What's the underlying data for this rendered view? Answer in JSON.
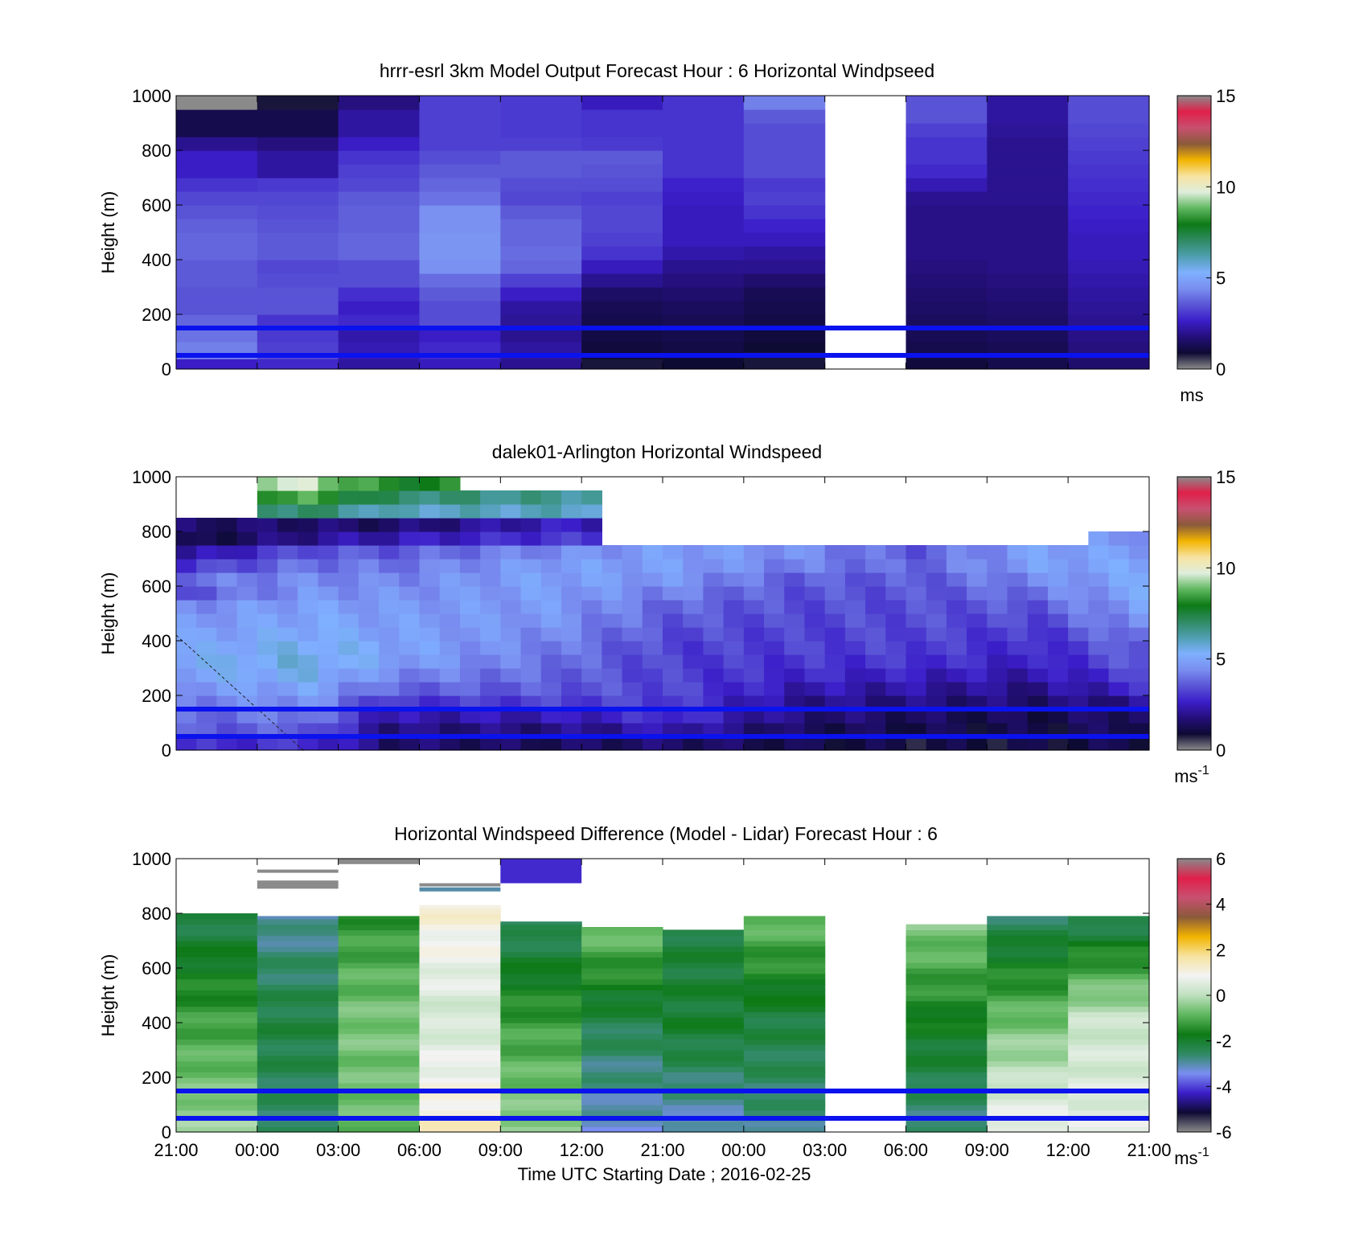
{
  "colors": {
    "reference_lines": "#0a12ee",
    "missing": "#ffffff",
    "speed_colormap": [
      "#8a8a8a",
      "#0d0a33",
      "#240f7a",
      "#3b1ec9",
      "#5a55d6",
      "#7a8ef0",
      "#7fb0ff",
      "#4f9fb0",
      "#2f8a62",
      "#0d7a16",
      "#5fb75f",
      "#dfeedd",
      "#f7e3a0",
      "#f2b400",
      "#8a5a3a",
      "#c85070",
      "#e0204a",
      "#8a8a8a"
    ],
    "diff_colormap": [
      "#8a8a8a",
      "#0d0a33",
      "#3b1ec9",
      "#7a8ef0",
      "#2f8a62",
      "#0d7a16",
      "#5fb75f",
      "#bfe0bf",
      "#f3f3f3",
      "#f7e3a0",
      "#f2b400",
      "#8a5a3a",
      "#c85070",
      "#e0204a",
      "#8a8a8a"
    ]
  },
  "chart_data": [
    {
      "type": "heatmap",
      "title": "hrrr-esrl 3km Model Output   Forecast Hour : 6 Horizontal Windpseed",
      "ylabel": "Height (m)",
      "ylim": [
        0,
        1000
      ],
      "yticks": [
        "0",
        "200",
        "400",
        "600",
        "800",
        "1000"
      ],
      "x_categories": [
        "21:00",
        "00:00",
        "03:00",
        "06:00",
        "09:00",
        "12:00",
        "21:00",
        "00:00",
        "03:00",
        "06:00",
        "09:00",
        "12:00"
      ],
      "height_levels_m": [
        25,
        50,
        75,
        125,
        175,
        225,
        275,
        325,
        375,
        425,
        475,
        525,
        575,
        625,
        675,
        725,
        775,
        825,
        875,
        925,
        975
      ],
      "colorbar": {
        "ticks": [
          "0",
          "5",
          "10",
          "15"
        ],
        "clim": [
          0,
          15
        ],
        "units": "ms"
      },
      "reference_lines_m": [
        50,
        150
      ],
      "values_ms": [
        [
          2.6,
          4.2,
          4.2,
          4.0,
          3.8,
          3.5,
          3.5,
          3.6,
          3.6,
          3.8,
          3.8,
          3.7,
          3.5,
          3.3,
          3.0,
          2.6,
          2.6,
          2.0,
          1.2,
          1.2,
          0
        ],
        [
          2.8,
          3.3,
          3.2,
          3.1,
          3.0,
          3.5,
          3.5,
          3.4,
          3.3,
          3.6,
          3.6,
          3.5,
          3.4,
          3.3,
          3.1,
          2.2,
          2.2,
          1.8,
          1.2,
          1.2,
          0.8
        ],
        [
          2.2,
          2.4,
          2.4,
          2.3,
          2.8,
          2.6,
          2.9,
          3.4,
          3.4,
          3.8,
          3.8,
          3.7,
          3.7,
          3.6,
          3.3,
          3.2,
          3.0,
          2.6,
          2.2,
          2.2,
          1.8
        ],
        [
          2.5,
          2.8,
          2.8,
          2.6,
          3.4,
          3.4,
          3.6,
          3.9,
          4.5,
          4.6,
          4.6,
          4.5,
          4.5,
          4.0,
          3.8,
          3.6,
          3.4,
          3.2,
          3.2,
          3.2,
          3.2
        ],
        [
          2.0,
          2.2,
          2.2,
          2.0,
          2.1,
          2.2,
          2.6,
          3.2,
          3.8,
          3.9,
          3.8,
          3.8,
          3.6,
          3.3,
          3.4,
          3.6,
          3.6,
          3.2,
          3.1,
          3.1,
          3.1
        ],
        [
          0.8,
          0.9,
          1.0,
          1.1,
          1.2,
          1.3,
          1.5,
          2.0,
          2.5,
          3.0,
          3.2,
          3.3,
          3.3,
          3.2,
          3.4,
          3.5,
          3.6,
          3.1,
          3.0,
          3.0,
          2.5
        ],
        [
          0.9,
          1.0,
          1.1,
          1.2,
          1.3,
          1.4,
          1.6,
          1.8,
          2.0,
          2.3,
          2.5,
          2.5,
          2.5,
          2.6,
          2.7,
          3.0,
          3.0,
          3.0,
          3.0,
          3.0,
          3.0
        ],
        [
          0.8,
          0.8,
          0.9,
          1.0,
          1.1,
          1.2,
          1.3,
          1.6,
          2.0,
          2.2,
          2.5,
          2.7,
          3.0,
          3.2,
          3.1,
          3.4,
          3.4,
          3.4,
          3.4,
          3.6,
          4.2
        ],
        [
          null,
          null,
          null,
          null,
          null,
          null,
          null,
          null,
          null,
          null,
          null,
          null,
          null,
          null,
          null,
          null,
          null,
          null,
          null,
          null,
          null
        ],
        [
          1.0,
          1.1,
          1.2,
          1.3,
          1.4,
          1.5,
          1.6,
          1.7,
          1.8,
          1.9,
          1.9,
          1.9,
          1.9,
          2.0,
          2.4,
          2.8,
          3.0,
          3.0,
          3.2,
          3.5,
          3.5
        ],
        [
          1.2,
          1.2,
          1.3,
          1.4,
          1.5,
          1.6,
          1.7,
          1.8,
          1.9,
          1.9,
          1.9,
          1.9,
          1.9,
          2.0,
          2.0,
          2.0,
          2.0,
          2.0,
          2.1,
          2.2,
          2.2
        ],
        [
          1.6,
          1.7,
          1.8,
          1.9,
          2.0,
          2.1,
          2.2,
          2.3,
          2.4,
          2.5,
          2.5,
          2.6,
          2.7,
          2.8,
          2.9,
          3.0,
          3.1,
          3.2,
          3.3,
          3.4,
          3.4
        ]
      ]
    },
    {
      "type": "heatmap",
      "title": "dalek01-Arlington  Horizontal Windspeed",
      "ylabel": "Height (m)",
      "ylim": [
        0,
        1000
      ],
      "yticks": [
        "0",
        "200",
        "400",
        "600",
        "800",
        "1000"
      ],
      "colorbar": {
        "ticks": [
          "0",
          "5",
          "10",
          "15"
        ],
        "clim": [
          0,
          15
        ],
        "units": "ms-1"
      },
      "reference_lines_m": [
        50,
        150
      ],
      "time_profiles": 48,
      "height_bins_m": [
        25,
        75,
        125,
        175,
        225,
        275,
        325,
        375,
        425,
        475,
        525,
        575,
        625,
        675,
        725,
        775,
        825,
        875,
        925,
        975
      ],
      "profile_anchors": [
        {
          "profile": 0,
          "speed_by_bin": [
            2.8,
            3.6,
            3.8,
            4.2,
            4.6,
            5.0,
            5.2,
            5.0,
            4.8,
            4.6,
            4.4,
            3.5,
            4.0,
            3.0,
            2.0,
            1.0,
            1.5,
            null,
            null,
            null
          ]
        },
        {
          "profile": 6,
          "speed_by_bin": [
            3.0,
            3.7,
            4.2,
            4.6,
            5.0,
            5.4,
            5.6,
            5.5,
            5.2,
            5.0,
            4.9,
            4.6,
            4.4,
            4.0,
            3.5,
            2.0,
            1.6,
            7.0,
            8.5,
            9.5
          ]
        },
        {
          "profile": 10,
          "speed_by_bin": [
            1.6,
            1.8,
            2.3,
            3.0,
            3.8,
            4.4,
            4.9,
            5.0,
            4.9,
            4.8,
            4.7,
            4.5,
            4.3,
            4.0,
            3.6,
            2.4,
            1.5,
            6.0,
            7.0,
            8.0
          ]
        },
        {
          "profile": 18,
          "speed_by_bin": [
            1.4,
            1.8,
            2.4,
            3.2,
            3.6,
            3.8,
            4.0,
            4.2,
            4.4,
            4.6,
            4.7,
            4.8,
            4.9,
            4.8,
            4.4,
            3.0,
            2.5,
            6.0,
            6.5,
            null
          ]
        },
        {
          "profile": 24,
          "speed_by_bin": [
            1.6,
            2.4,
            3.0,
            3.2,
            3.3,
            3.2,
            3.2,
            3.2,
            3.4,
            3.6,
            3.8,
            4.2,
            4.6,
            4.8,
            4.8,
            null,
            null,
            null,
            null,
            null
          ]
        },
        {
          "profile": 30,
          "speed_by_bin": [
            1.2,
            1.4,
            1.8,
            2.0,
            2.4,
            2.8,
            3.0,
            3.2,
            3.2,
            3.3,
            3.4,
            3.5,
            3.7,
            4.2,
            4.5,
            null,
            null,
            null,
            null,
            null
          ]
        },
        {
          "profile": 36,
          "speed_by_bin": [
            1.0,
            1.2,
            1.4,
            1.8,
            2.2,
            2.6,
            3.0,
            3.2,
            3.3,
            3.4,
            3.4,
            3.5,
            3.6,
            3.8,
            3.6,
            null,
            null,
            null,
            null,
            null
          ]
        },
        {
          "profile": 42,
          "speed_by_bin": [
            1.0,
            1.1,
            1.2,
            1.6,
            1.9,
            2.3,
            2.6,
            2.8,
            3.0,
            3.3,
            3.6,
            4.0,
            4.4,
            4.8,
            4.9,
            null,
            null,
            null,
            null,
            null
          ]
        },
        {
          "profile": 47,
          "speed_by_bin": [
            1.2,
            1.4,
            1.6,
            2.0,
            2.8,
            3.2,
            3.6,
            3.8,
            4.2,
            4.6,
            4.8,
            5.0,
            5.0,
            5.0,
            4.8,
            4.6,
            null,
            null,
            null,
            null
          ]
        }
      ],
      "upper_gap_profiles_from": 26
    },
    {
      "type": "heatmap",
      "title": "Horizontal Windspeed Difference (Model - Lidar) Forecast Hour : 6",
      "ylabel": "Height (m)",
      "xlabel": "Time UTC  Starting Date ; 2016-02-25",
      "ylim": [
        0,
        1000
      ],
      "yticks": [
        "0",
        "200",
        "400",
        "600",
        "800",
        "1000"
      ],
      "x_categories": [
        "21:00",
        "00:00",
        "03:00",
        "06:00",
        "09:00",
        "12:00",
        "21:00",
        "00:00",
        "03:00",
        "06:00",
        "09:00",
        "12:00",
        "21:00"
      ],
      "colorbar": {
        "ticks": [
          "-6",
          "-4",
          "-2",
          "0",
          "2",
          "4",
          "6"
        ],
        "clim": [
          -6,
          6
        ],
        "units": "ms-1"
      },
      "reference_lines_m": [
        50,
        150
      ],
      "columns": [
        {
          "top_m": 800,
          "bottom": -0.3,
          "mid": -1.2,
          "top": -2.4
        },
        {
          "top_m": 790,
          "bottom": -2.6,
          "mid": -2.2,
          "top": -3.0
        },
        {
          "top_m": 790,
          "bottom": -0.8,
          "mid": -0.6,
          "top": -1.4
        },
        {
          "top_m": 830,
          "bottom": 1.3,
          "mid": 0.3,
          "top": 1.2
        },
        {
          "top_m": 770,
          "bottom": -0.4,
          "mid": -1.2,
          "top": -2.6
        },
        {
          "top_m": 750,
          "bottom": -3.2,
          "mid": -2.4,
          "top": -0.6
        },
        {
          "top_m": 740,
          "bottom": -3.2,
          "mid": -2.0,
          "top": -2.2
        },
        {
          "top_m": 790,
          "bottom": -2.8,
          "mid": -2.2,
          "top": -0.7
        },
        {
          "top_m": null,
          "bottom": null,
          "mid": null,
          "top": null
        },
        {
          "top_m": 760,
          "bottom": -2.8,
          "mid": -1.8,
          "top": -0.5
        },
        {
          "top_m": 790,
          "bottom": 0.8,
          "mid": -0.7,
          "top": -2.6
        },
        {
          "top_m": 790,
          "bottom": 0.6,
          "mid": 0.2,
          "top": -2.6
        }
      ],
      "isolated_segments": [
        {
          "column": 1,
          "from_m": 950,
          "to_m": 960,
          "value": -6
        },
        {
          "column": 1,
          "from_m": 890,
          "to_m": 920,
          "value": -6
        },
        {
          "column": 2,
          "from_m": 980,
          "to_m": 1000,
          "value": -6
        },
        {
          "column": 3,
          "from_m": 900,
          "to_m": 910,
          "value": -6
        },
        {
          "column": 3,
          "from_m": 880,
          "to_m": 895,
          "value": -3.0
        },
        {
          "column": 4,
          "from_m": 910,
          "to_m": 1000,
          "value": -4.2
        }
      ]
    }
  ]
}
